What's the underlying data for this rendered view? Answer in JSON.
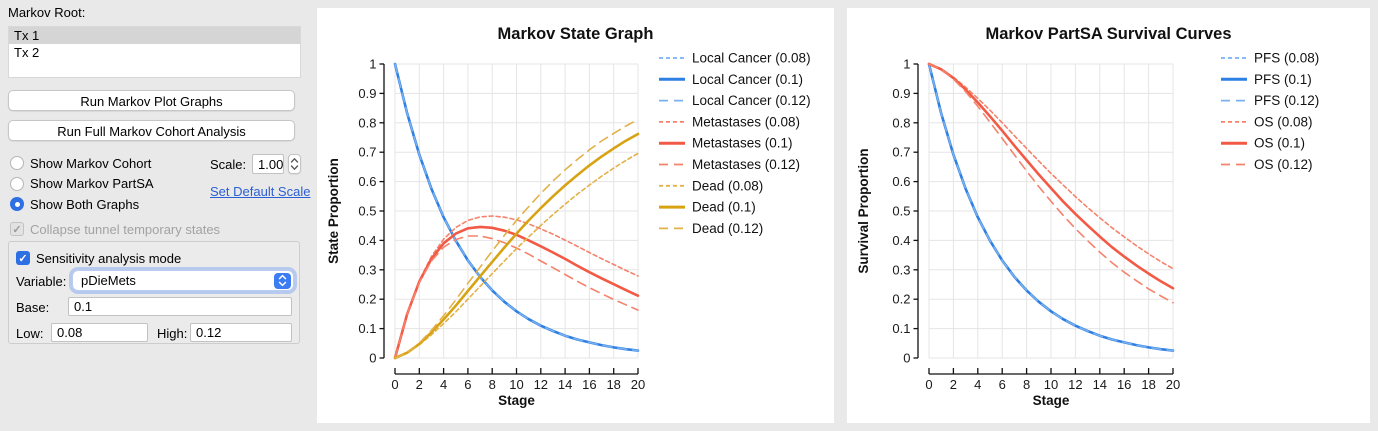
{
  "sidebar": {
    "root_label": "Markov Root:",
    "tree_items": [
      {
        "label": "Tx 1",
        "selected": true
      },
      {
        "label": "Tx 2",
        "selected": false
      }
    ],
    "run_plot_button": "Run Markov Plot Graphs",
    "run_full_button": "Run Full Markov Cohort Analysis",
    "radio_options": [
      {
        "label": "Show Markov Cohort",
        "selected": false
      },
      {
        "label": "Show Markov PartSA",
        "selected": false
      },
      {
        "label": "Show Both Graphs",
        "selected": true
      }
    ],
    "scale": {
      "label": "Scale:",
      "value": "1.00"
    },
    "set_default_scale_link": "Set Default Scale",
    "collapse_checkbox": {
      "label": "Collapse tunnel temporary states",
      "checked": true,
      "enabled": false
    },
    "sensitivity": {
      "mode_checkbox": {
        "label": "Sensitivity analysis mode",
        "checked": true
      },
      "variable_label": "Variable:",
      "variable_value": "pDieMets",
      "base_label": "Base:",
      "base_value": "0.1",
      "low_label": "Low:",
      "low_value": "0.08",
      "high_label": "High:",
      "high_value": "0.12"
    },
    "icons": {
      "scale_stepper": "up-down-chevrons",
      "variable_popup": "up-down-chevrons",
      "checkmark": "✓"
    }
  },
  "colors": {
    "blue": "#2d7fe3",
    "blue_light": "#79b0ee",
    "salmon": "#f25a45",
    "salmon_light": "#f5826b",
    "gold": "#d7a312",
    "gold_light": "#e2b148",
    "grid": "#e5e5e5",
    "axis": "#111111"
  },
  "chart_data": [
    {
      "type": "line",
      "title": "Markov State Graph",
      "xlabel": "Stage",
      "ylabel": "State Proportion",
      "xlim": [
        0,
        20
      ],
      "ylim": [
        0,
        1
      ],
      "xtick_step": 2,
      "ytick_step": 0.1,
      "grid": true,
      "legend_position": "right",
      "x": [
        0,
        1,
        2,
        3,
        4,
        5,
        6,
        7,
        8,
        9,
        10,
        11,
        12,
        13,
        14,
        15,
        16,
        17,
        18,
        19,
        20
      ],
      "series": [
        {
          "name": "Local Cancer (0.08)",
          "color": "#79b0ee",
          "dash": "short",
          "values": [
            1,
            0.832,
            0.692,
            0.576,
            0.479,
            0.399,
            0.332,
            0.276,
            0.23,
            0.191,
            0.159,
            0.132,
            0.11,
            0.092,
            0.076,
            0.063,
            0.053,
            0.044,
            0.036,
            0.03,
            0.025
          ]
        },
        {
          "name": "Local Cancer (0.1)",
          "color": "#2d7fe3",
          "dash": "solid",
          "values": [
            1,
            0.832,
            0.692,
            0.576,
            0.479,
            0.399,
            0.332,
            0.276,
            0.23,
            0.191,
            0.159,
            0.132,
            0.11,
            0.092,
            0.076,
            0.063,
            0.053,
            0.044,
            0.036,
            0.03,
            0.025
          ]
        },
        {
          "name": "Local Cancer (0.12)",
          "color": "#79b0ee",
          "dash": "long",
          "values": [
            1,
            0.832,
            0.692,
            0.576,
            0.479,
            0.399,
            0.332,
            0.276,
            0.23,
            0.191,
            0.159,
            0.132,
            0.11,
            0.092,
            0.076,
            0.063,
            0.053,
            0.044,
            0.036,
            0.03,
            0.025
          ]
        },
        {
          "name": "Metastases (0.08)",
          "color": "#f5826b",
          "dash": "short",
          "values": [
            0,
            0.15,
            0.263,
            0.345,
            0.404,
            0.444,
            0.468,
            0.48,
            0.483,
            0.479,
            0.47,
            0.456,
            0.439,
            0.421,
            0.401,
            0.38,
            0.359,
            0.338,
            0.318,
            0.298,
            0.279
          ]
        },
        {
          "name": "Metastases (0.1)",
          "color": "#f25a45",
          "dash": "solid",
          "values": [
            0,
            0.15,
            0.26,
            0.337,
            0.39,
            0.423,
            0.441,
            0.446,
            0.443,
            0.433,
            0.419,
            0.4,
            0.38,
            0.359,
            0.337,
            0.314,
            0.292,
            0.271,
            0.251,
            0.231,
            0.212
          ]
        },
        {
          "name": "Metastases (0.12)",
          "color": "#f5826b",
          "dash": "long",
          "values": [
            0,
            0.15,
            0.257,
            0.33,
            0.377,
            0.403,
            0.415,
            0.415,
            0.406,
            0.392,
            0.374,
            0.353,
            0.33,
            0.307,
            0.284,
            0.261,
            0.239,
            0.219,
            0.199,
            0.181,
            0.163
          ]
        },
        {
          "name": "Dead (0.08)",
          "color": "#e2b148",
          "dash": "short",
          "values": [
            0,
            0.018,
            0.045,
            0.079,
            0.117,
            0.157,
            0.2,
            0.244,
            0.287,
            0.33,
            0.372,
            0.412,
            0.451,
            0.488,
            0.523,
            0.557,
            0.588,
            0.618,
            0.646,
            0.672,
            0.696
          ]
        },
        {
          "name": "Dead (0.1)",
          "color": "#d7a312",
          "dash": "solid",
          "values": [
            0,
            0.018,
            0.048,
            0.087,
            0.131,
            0.178,
            0.228,
            0.278,
            0.327,
            0.376,
            0.423,
            0.468,
            0.51,
            0.55,
            0.587,
            0.622,
            0.655,
            0.685,
            0.713,
            0.739,
            0.762
          ]
        },
        {
          "name": "Dead (0.12)",
          "color": "#e2b148",
          "dash": "long",
          "values": [
            0,
            0.018,
            0.051,
            0.094,
            0.144,
            0.198,
            0.254,
            0.309,
            0.364,
            0.417,
            0.468,
            0.515,
            0.56,
            0.602,
            0.64,
            0.675,
            0.708,
            0.738,
            0.764,
            0.789,
            0.811
          ]
        }
      ]
    },
    {
      "type": "line",
      "title": "Markov PartSA Survival Curves",
      "xlabel": "Stage",
      "ylabel": "Survival Proportion",
      "xlim": [
        0,
        20
      ],
      "ylim": [
        0,
        1
      ],
      "xtick_step": 2,
      "ytick_step": 0.1,
      "grid": true,
      "legend_position": "right",
      "x": [
        0,
        1,
        2,
        3,
        4,
        5,
        6,
        7,
        8,
        9,
        10,
        11,
        12,
        13,
        14,
        15,
        16,
        17,
        18,
        19,
        20
      ],
      "series": [
        {
          "name": "PFS (0.08)",
          "color": "#79b0ee",
          "dash": "short",
          "values": [
            1,
            0.832,
            0.692,
            0.576,
            0.479,
            0.399,
            0.332,
            0.276,
            0.23,
            0.191,
            0.159,
            0.132,
            0.11,
            0.092,
            0.076,
            0.063,
            0.053,
            0.044,
            0.036,
            0.03,
            0.025
          ]
        },
        {
          "name": "PFS (0.1)",
          "color": "#2d7fe3",
          "dash": "solid",
          "values": [
            1,
            0.832,
            0.692,
            0.576,
            0.479,
            0.399,
            0.332,
            0.276,
            0.23,
            0.191,
            0.159,
            0.132,
            0.11,
            0.092,
            0.076,
            0.063,
            0.053,
            0.044,
            0.036,
            0.03,
            0.025
          ]
        },
        {
          "name": "PFS (0.12)",
          "color": "#79b0ee",
          "dash": "long",
          "values": [
            1,
            0.832,
            0.692,
            0.576,
            0.479,
            0.399,
            0.332,
            0.276,
            0.23,
            0.191,
            0.159,
            0.132,
            0.11,
            0.092,
            0.076,
            0.063,
            0.053,
            0.044,
            0.036,
            0.03,
            0.025
          ]
        },
        {
          "name": "OS (0.08)",
          "color": "#f5826b",
          "dash": "short",
          "values": [
            1,
            0.982,
            0.955,
            0.921,
            0.883,
            0.843,
            0.8,
            0.756,
            0.713,
            0.67,
            0.628,
            0.588,
            0.549,
            0.512,
            0.477,
            0.443,
            0.412,
            0.382,
            0.354,
            0.328,
            0.304
          ]
        },
        {
          "name": "OS (0.1)",
          "color": "#f25a45",
          "dash": "solid",
          "values": [
            1,
            0.982,
            0.952,
            0.913,
            0.869,
            0.822,
            0.773,
            0.722,
            0.673,
            0.624,
            0.578,
            0.532,
            0.49,
            0.451,
            0.413,
            0.377,
            0.345,
            0.315,
            0.287,
            0.261,
            0.237
          ]
        },
        {
          "name": "OS (0.12)",
          "color": "#f5826b",
          "dash": "long",
          "values": [
            1,
            0.982,
            0.949,
            0.906,
            0.856,
            0.802,
            0.747,
            0.691,
            0.636,
            0.583,
            0.533,
            0.485,
            0.44,
            0.399,
            0.36,
            0.324,
            0.292,
            0.263,
            0.235,
            0.211,
            0.188
          ]
        }
      ]
    }
  ]
}
